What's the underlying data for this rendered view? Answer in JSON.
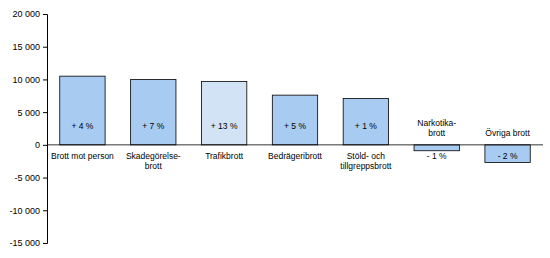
{
  "chart_data": {
    "type": "bar",
    "categories": [
      "Brott mot person",
      "Skadegörelse-\nbrott",
      "Trafikbrott",
      "Bedrägeribrott",
      "Stöld- och\ntillgreppsbrott",
      "Narkotika-\nbrott",
      "Övriga brott"
    ],
    "values": [
      10500,
      10000,
      9700,
      7600,
      7100,
      -900,
      -2700
    ],
    "annotations": [
      "+ 4 %",
      "+ 7 %",
      "+ 13 %",
      "+ 5 %",
      "+ 1 %",
      "- 1 %",
      "- 2 %"
    ],
    "colors": [
      "#a8cbf2",
      "#a8cbf2",
      "#d2e3f6",
      "#a8cbf2",
      "#a8cbf2",
      "#a8cbf2",
      "#a8cbf2"
    ],
    "ylim": [
      -15000,
      20000
    ],
    "yticks": [
      {
        "value": -15000,
        "label": "-15 000"
      },
      {
        "value": -10000,
        "label": "-10 000"
      },
      {
        "value": -5000,
        "label": "-5 000"
      },
      0,
      {
        "value": 5000,
        "label": "5 000"
      },
      {
        "value": 10000,
        "label": "10 000"
      },
      {
        "value": 15000,
        "label": "15 000"
      },
      {
        "value": 20000,
        "label": "20 000"
      }
    ],
    "grid": false
  }
}
